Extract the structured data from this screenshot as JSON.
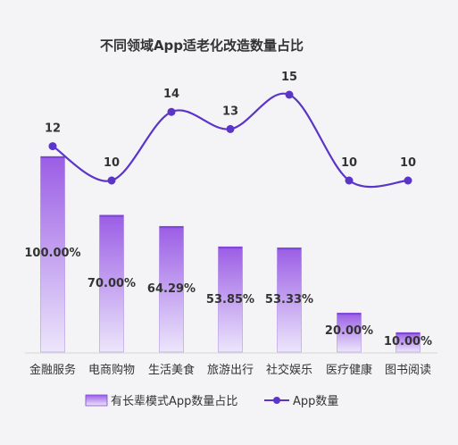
{
  "chart_data": {
    "type": "bar+line",
    "title": "不同领域App适老化改造数量占比",
    "categories": [
      "金融服务",
      "电商购物",
      "生活美食",
      "旅游出行",
      "社交娱乐",
      "医疗健康",
      "图书阅读"
    ],
    "series": [
      {
        "name": "有长辈模式App数量占比",
        "type": "bar",
        "values": [
          100.0,
          70.0,
          64.29,
          53.85,
          53.33,
          20.0,
          10.0
        ],
        "labels": [
          "100.00%",
          "70.00%",
          "64.29%",
          "53.85%",
          "53.33%",
          "20.00%",
          "10.00%"
        ]
      },
      {
        "name": "App数量",
        "type": "line",
        "values": [
          12,
          10,
          14,
          13,
          15,
          10,
          10
        ],
        "labels": [
          "12",
          "10",
          "14",
          "13",
          "15",
          "10",
          "10"
        ]
      }
    ],
    "legend_position": "bottom",
    "colors": {
      "bar_top": "#9b5de5",
      "bar_bottom": "#ece6fb",
      "bar_edge": "#7e46d8",
      "line": "#5b35c8",
      "text": "#333333"
    }
  }
}
